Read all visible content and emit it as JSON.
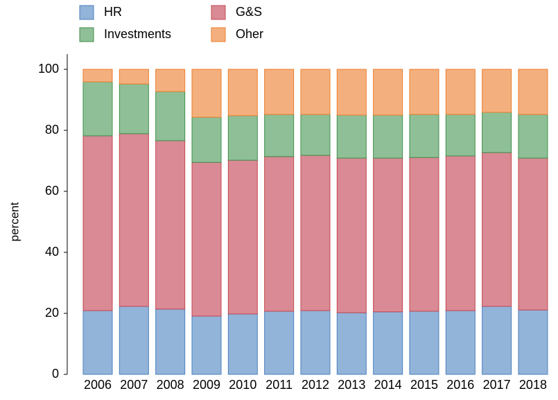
{
  "chart_data": {
    "type": "stacked_bar",
    "ylabel": "percent",
    "categories": [
      "2006",
      "2007",
      "2008",
      "2009",
      "2010",
      "2011",
      "2012",
      "2013",
      "2014",
      "2015",
      "2016",
      "2017",
      "2018"
    ],
    "series": [
      {
        "name": "HR",
        "color": "#92b4d8",
        "edge": "#4a7fbf",
        "values": [
          20.9,
          22.3,
          21.4,
          19.1,
          19.8,
          20.7,
          20.9,
          20.2,
          20.5,
          20.7,
          20.9,
          22.3,
          21.1
        ]
      },
      {
        "name": "G&S",
        "color": "#d98a95",
        "edge": "#c5464f",
        "values": [
          57.3,
          56.6,
          55.2,
          50.4,
          50.4,
          50.7,
          50.9,
          50.7,
          50.4,
          50.4,
          50.7,
          50.4,
          49.8
        ]
      },
      {
        "name": "Investments",
        "color": "#8fbf97",
        "edge": "#3f8f4a",
        "values": [
          17.7,
          16.3,
          16.1,
          14.8,
          14.6,
          13.8,
          13.4,
          14.1,
          14.1,
          14.1,
          13.6,
          13.2,
          14.3
        ]
      },
      {
        "name": "Oher",
        "color": "#f3b07e",
        "edge": "#ee7d2c",
        "values": [
          4.1,
          4.8,
          7.3,
          15.7,
          15.2,
          14.8,
          14.8,
          15.0,
          15.0,
          14.8,
          14.8,
          14.1,
          14.8
        ]
      }
    ],
    "ylim": [
      0,
      100
    ],
    "yticks": [
      0,
      20,
      40,
      60,
      80,
      100
    ]
  }
}
